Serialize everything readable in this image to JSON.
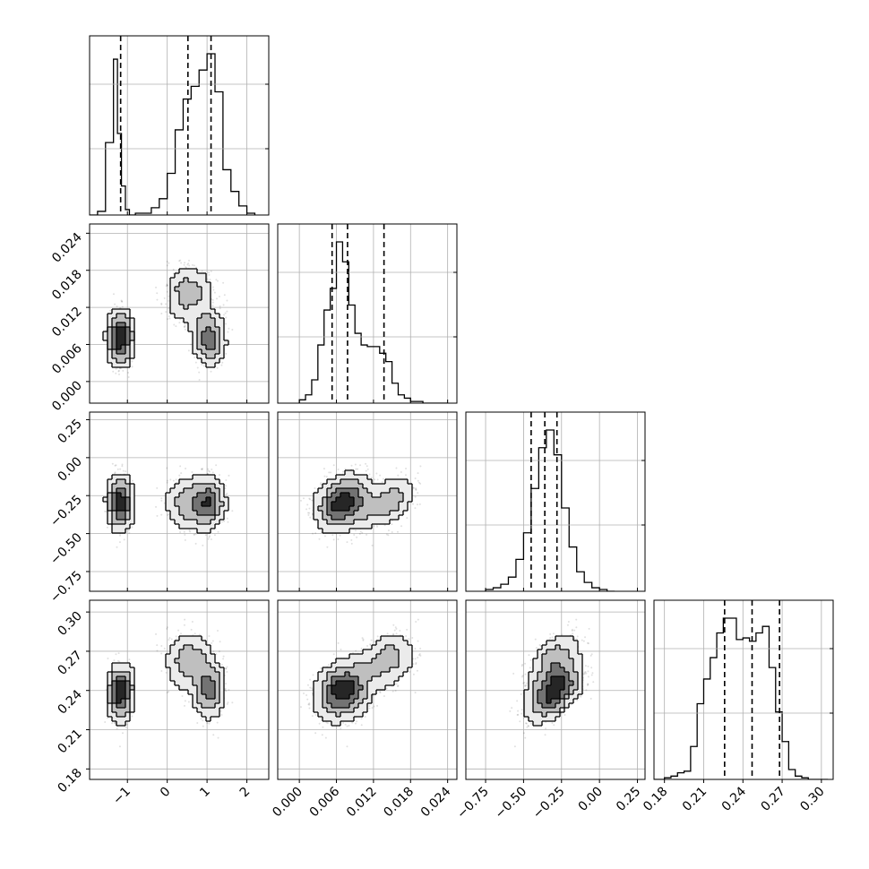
{
  "chart_data": {
    "type": "corner",
    "title": "",
    "parameters": [
      {
        "label": "",
        "range": [
          -1.95,
          2.55
        ],
        "ticks": [
          -1,
          0,
          1,
          2
        ],
        "tick_labels": [
          "−1",
          "0",
          "1",
          "2"
        ]
      },
      {
        "label": "",
        "range": [
          -0.0035,
          0.0255
        ],
        "ticks": [
          0.0,
          0.006,
          0.012,
          0.018,
          0.024
        ],
        "tick_labels": [
          "0.000",
          "0.006",
          "0.012",
          "0.018",
          "0.024"
        ]
      },
      {
        "label": "",
        "range": [
          -0.88,
          0.3
        ],
        "ticks": [
          -0.75,
          -0.5,
          -0.25,
          0.0,
          0.25
        ],
        "tick_labels": [
          "−0.75",
          "−0.50",
          "−0.25",
          "0.00",
          "0.25"
        ]
      },
      {
        "label": "",
        "range": [
          0.172,
          0.309
        ],
        "ticks": [
          0.18,
          0.21,
          0.24,
          0.27,
          0.3
        ],
        "tick_labels": [
          "0.18",
          "0.21",
          "0.24",
          "0.27",
          "0.30"
        ]
      }
    ],
    "quantiles": [
      [
        -1.17,
        0.52,
        1.1
      ],
      [
        0.0053,
        0.0078,
        0.0137
      ],
      [
        -0.45,
        -0.36,
        -0.28
      ],
      [
        0.226,
        0.247,
        0.268
      ]
    ],
    "histograms": [
      {
        "bin_edges": [
          -1.95,
          -1.75,
          -1.55,
          -1.35,
          -1.25,
          -1.15,
          -1.05,
          -0.95,
          -0.8,
          -0.4,
          -0.2,
          0.0,
          0.2,
          0.4,
          0.6,
          0.8,
          1.0,
          1.2,
          1.4,
          1.6,
          1.8,
          2.0,
          2.2
        ],
        "counts": [
          0,
          0.02,
          0.4,
          0.86,
          0.45,
          0.16,
          0.03,
          0,
          0.01,
          0.04,
          0.09,
          0.23,
          0.47,
          0.64,
          0.71,
          0.8,
          0.89,
          0.68,
          0.25,
          0.13,
          0.05,
          0.01
        ]
      },
      {
        "bin_edges": [
          0.0,
          0.001,
          0.002,
          0.003,
          0.004,
          0.005,
          0.006,
          0.007,
          0.008,
          0.009,
          0.01,
          0.011,
          0.012,
          0.013,
          0.014,
          0.015,
          0.016,
          0.017,
          0.018,
          0.019,
          0.02,
          0.021,
          0.022,
          0.023,
          0.024
        ],
        "counts": [
          0.02,
          0.05,
          0.14,
          0.35,
          0.56,
          0.69,
          0.97,
          0.85,
          0.59,
          0.42,
          0.35,
          0.34,
          0.34,
          0.3,
          0.25,
          0.12,
          0.05,
          0.03,
          0.01,
          0.01,
          0,
          0,
          0,
          0
        ]
      },
      {
        "bin_edges": [
          -0.75,
          -0.7,
          -0.65,
          -0.6,
          -0.55,
          -0.5,
          -0.45,
          -0.4,
          -0.35,
          -0.3,
          -0.25,
          -0.2,
          -0.15,
          -0.1,
          -0.05,
          0.0,
          0.05,
          0.1
        ],
        "counts": [
          0.01,
          0.02,
          0.04,
          0.08,
          0.18,
          0.33,
          0.58,
          0.81,
          0.91,
          0.77,
          0.47,
          0.25,
          0.11,
          0.05,
          0.02,
          0.01,
          0
        ]
      },
      {
        "bin_edges": [
          0.172,
          0.18,
          0.185,
          0.19,
          0.195,
          0.2,
          0.205,
          0.21,
          0.215,
          0.22,
          0.225,
          0.23,
          0.235,
          0.24,
          0.245,
          0.25,
          0.255,
          0.26,
          0.265,
          0.27,
          0.275,
          0.28,
          0.285,
          0.29,
          0.295,
          0.3,
          0.305
        ],
        "counts": [
          0,
          0.01,
          0.02,
          0.04,
          0.05,
          0.2,
          0.46,
          0.61,
          0.74,
          0.89,
          0.98,
          0.98,
          0.85,
          0.86,
          0.84,
          0.89,
          0.93,
          0.68,
          0.41,
          0.23,
          0.06,
          0.02,
          0.01,
          0,
          0,
          0
        ]
      }
    ],
    "modes": {
      "p0": [
        {
          "mean": -1.17,
          "sd": 0.12,
          "w": 0.38
        },
        {
          "mean": 0.55,
          "sd": 0.3,
          "w": 0.32
        },
        {
          "mean": 1.05,
          "sd": 0.18,
          "w": 0.3
        }
      ],
      "p1": [
        0.007,
        0.014,
        0.007
      ],
      "p2": [
        -0.3,
        -0.3,
        -0.3
      ],
      "p3": [
        0.238,
        0.262,
        0.24
      ]
    },
    "grid": true,
    "points": "grey scatter with shaded density contours"
  }
}
